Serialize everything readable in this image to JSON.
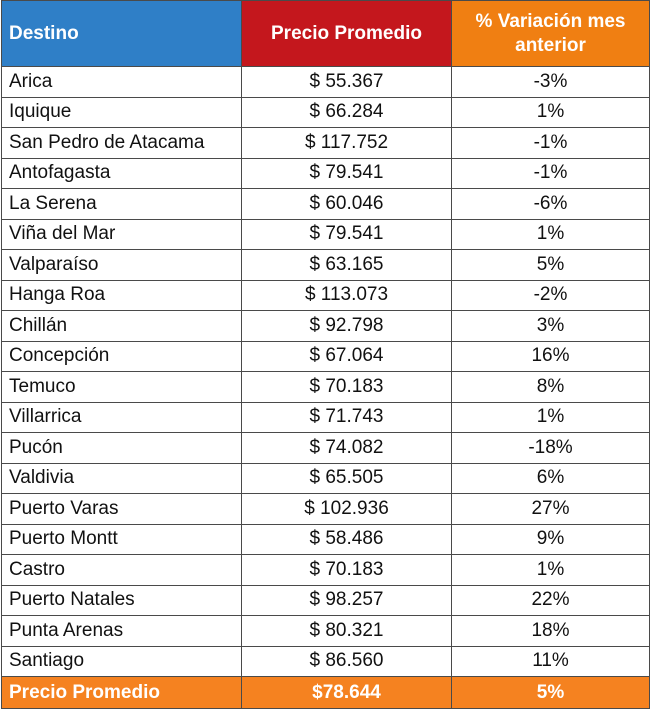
{
  "headers": {
    "destino": "Destino",
    "precio": "Precio Promedio",
    "variacion": "% Variación mes anterior"
  },
  "rows": [
    {
      "destino": "Arica",
      "precio": "$ 55.367",
      "variacion": "-3%"
    },
    {
      "destino": "Iquique",
      "precio": "$ 66.284",
      "variacion": "1%"
    },
    {
      "destino": "San Pedro de Atacama",
      "precio": "$ 117.752",
      "variacion": "-1%"
    },
    {
      "destino": "Antofagasta",
      "precio": "$ 79.541",
      "variacion": "-1%"
    },
    {
      "destino": "La Serena",
      "precio": "$ 60.046",
      "variacion": "-6%"
    },
    {
      "destino": "Viña del Mar",
      "precio": "$ 79.541",
      "variacion": "1%"
    },
    {
      "destino": "Valparaíso",
      "precio": "$ 63.165",
      "variacion": "5%"
    },
    {
      "destino": "Hanga Roa",
      "precio": "$ 113.073",
      "variacion": "-2%"
    },
    {
      "destino": "Chillán",
      "precio": "$ 92.798",
      "variacion": "3%"
    },
    {
      "destino": "Concepción",
      "precio": "$ 67.064",
      "variacion": "16%"
    },
    {
      "destino": "Temuco",
      "precio": "$ 70.183",
      "variacion": "8%"
    },
    {
      "destino": "Villarrica",
      "precio": "$ 71.743",
      "variacion": "1%"
    },
    {
      "destino": "Pucón",
      "precio": "$ 74.082",
      "variacion": "-18%"
    },
    {
      "destino": "Valdivia",
      "precio": "$ 65.505",
      "variacion": "6%"
    },
    {
      "destino": "Puerto Varas",
      "precio": "$ 102.936",
      "variacion": "27%"
    },
    {
      "destino": "Puerto Montt",
      "precio": "$ 58.486",
      "variacion": "9%"
    },
    {
      "destino": "Castro",
      "precio": "$ 70.183",
      "variacion": "1%"
    },
    {
      "destino": "Puerto Natales",
      "precio": "$ 98.257",
      "variacion": "22%"
    },
    {
      "destino": "Punta Arenas",
      "precio": "$ 80.321",
      "variacion": "18%"
    },
    {
      "destino": "Santiago",
      "precio": "$ 86.560",
      "variacion": "11%"
    }
  ],
  "footer": {
    "label": "Precio Promedio",
    "precio": "$78.644",
    "variacion": "5%"
  },
  "colors": {
    "header_destino": "#2f7fc7",
    "header_precio": "#c4171d",
    "header_variacion": "#f07f12",
    "footer": "#f58220"
  }
}
